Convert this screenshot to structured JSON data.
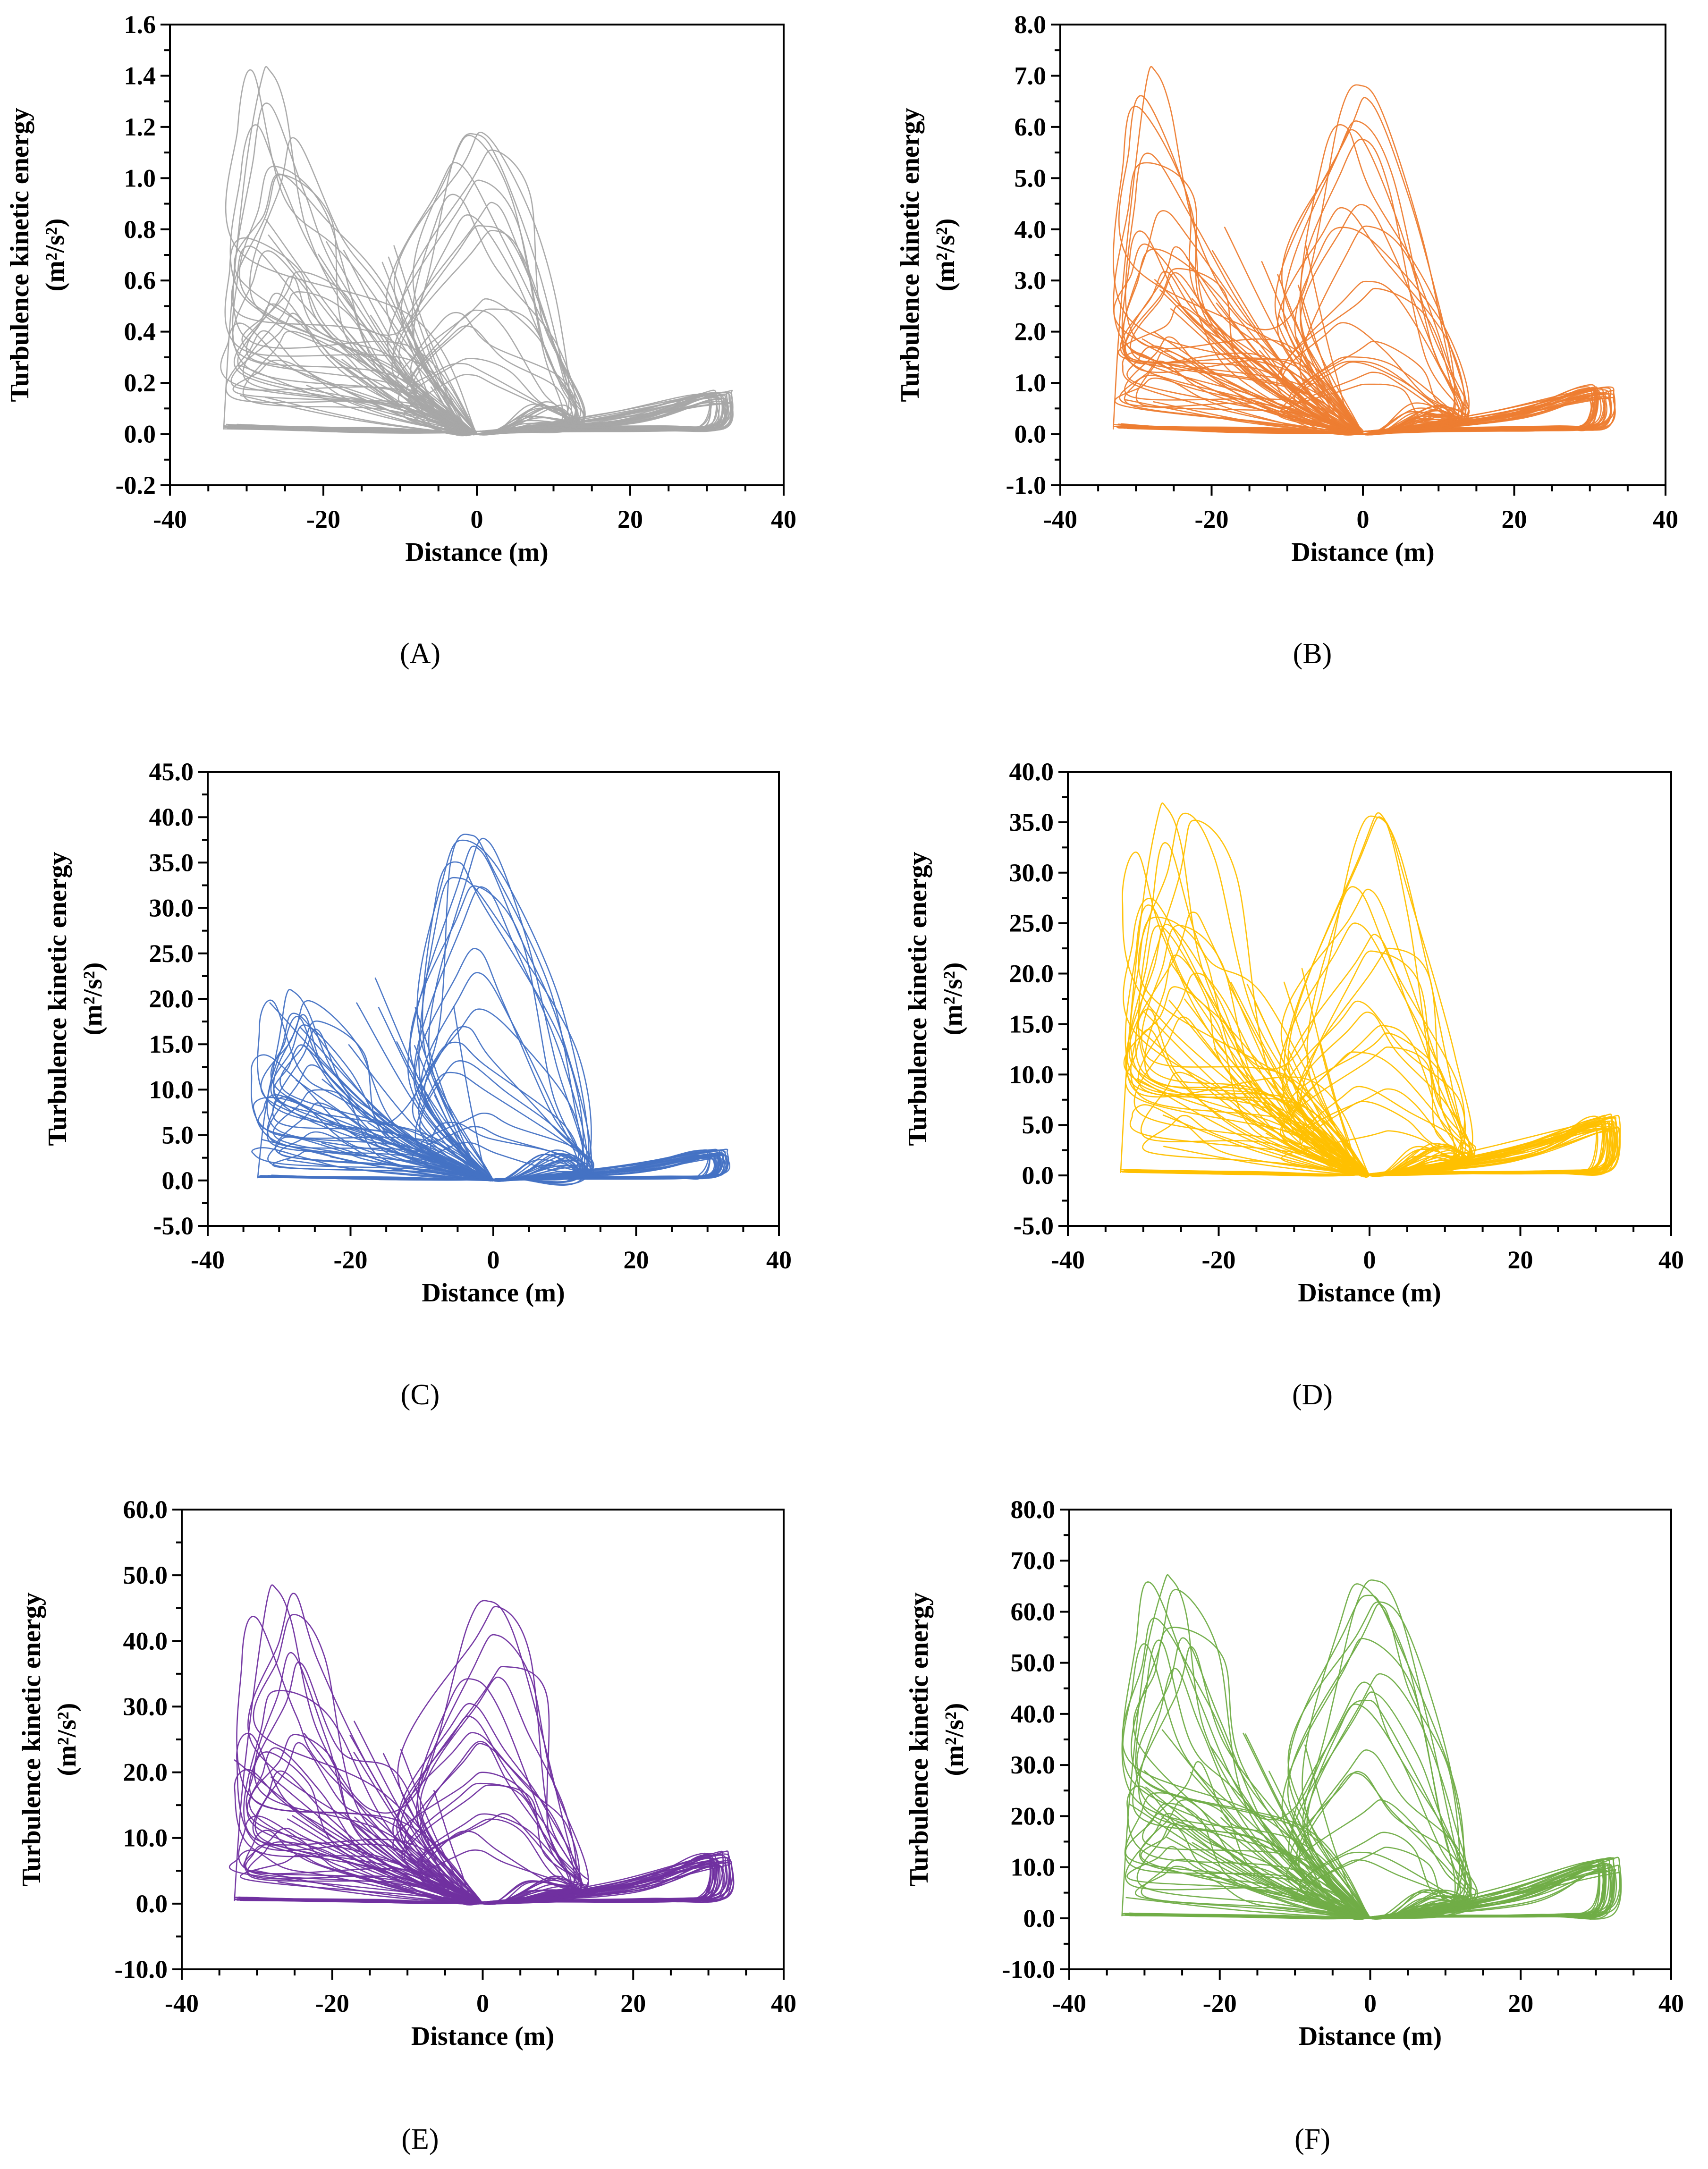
{
  "chart_data": [
    {
      "type": "line",
      "panel_label": "(A)",
      "xlabel": "Distance (m)",
      "ylabel_line1": "Turbulence kinetic energy",
      "ylabel_line2": "(m²/s²)",
      "xlim": [
        -40,
        40
      ],
      "ylim": [
        -0.2,
        1.6
      ],
      "x_ticks": [
        -40,
        -20,
        0,
        20,
        40
      ],
      "x_tick_labels": [
        "-40",
        "-20",
        "0",
        "20",
        "40"
      ],
      "y_ticks": [
        -0.2,
        0,
        0.2,
        0.4,
        0.6,
        0.8,
        1.0,
        1.2,
        1.4,
        1.6
      ],
      "y_tick_labels": [
        "-0.2",
        "0.0",
        "0.2",
        "0.4",
        "0.6",
        "0.8",
        "1.0",
        "1.2",
        "1.4",
        "1.6"
      ],
      "color": "#a6a6a6",
      "grid": false,
      "legend": "none",
      "left_peak": [
        -27,
        1.42
      ],
      "right_peak": [
        0,
        1.17
      ],
      "loop_top": 0.17,
      "loop_bottom": 0.02
    },
    {
      "type": "line",
      "panel_label": "(B)",
      "xlabel": "Distance (m)",
      "ylabel_line1": "Turbulence kinetic energy",
      "ylabel_line2": "(m²/s²)",
      "xlim": [
        -40,
        40
      ],
      "ylim": [
        -1.0,
        8.0
      ],
      "x_ticks": [
        -40,
        -20,
        0,
        20,
        40
      ],
      "x_tick_labels": [
        "-40",
        "-20",
        "0",
        "20",
        "40"
      ],
      "y_ticks": [
        -1,
        0,
        1,
        2,
        3,
        4,
        5,
        6,
        7,
        8
      ],
      "y_tick_labels": [
        "-1.0",
        "0.0",
        "1.0",
        "2.0",
        "3.0",
        "4.0",
        "5.0",
        "6.0",
        "7.0",
        "8.0"
      ],
      "color": "#ed7d31",
      "grid": false,
      "legend": "none",
      "left_peak": [
        -27.5,
        7.1
      ],
      "right_peak": [
        0,
        6.8
      ],
      "loop_top": 1.0,
      "loop_bottom": 0.1
    },
    {
      "type": "line",
      "panel_label": "(C)",
      "xlabel": "Distance (m)",
      "ylabel_line1": "Turbulence kinetic energy",
      "ylabel_line2": "(m²/s²)",
      "xlim": [
        -40,
        40
      ],
      "ylim": [
        -5.0,
        45.0
      ],
      "x_ticks": [
        -40,
        -20,
        0,
        20,
        40
      ],
      "x_tick_labels": [
        "-40",
        "-20",
        "0",
        "20",
        "40"
      ],
      "y_ticks": [
        -5,
        0,
        5,
        10,
        15,
        20,
        25,
        30,
        35,
        40,
        45
      ],
      "y_tick_labels": [
        "-5.0",
        "0.0",
        "5.0",
        "10.0",
        "15.0",
        "20.0",
        "25.0",
        "30.0",
        "35.0",
        "40.0",
        "45.0"
      ],
      "color": "#4472c4",
      "grid": false,
      "legend": "none",
      "left_peak": [
        -28,
        20.8
      ],
      "right_peak": [
        -3,
        38.0
      ],
      "loop_top": 3.5,
      "loop_bottom": 0.3
    },
    {
      "type": "line",
      "panel_label": "(D)",
      "xlabel": "Distance (m)",
      "ylabel_line1": "Turbulence kinetic energy",
      "ylabel_line2": "(m²/s²)",
      "xlim": [
        -40,
        40
      ],
      "ylim": [
        -5.0,
        40.0
      ],
      "x_ticks": [
        -40,
        -20,
        0,
        20,
        40
      ],
      "x_tick_labels": [
        "-40",
        "-20",
        "0",
        "20",
        "40"
      ],
      "y_ticks": [
        -5,
        0,
        5,
        10,
        15,
        20,
        25,
        30,
        35,
        40
      ],
      "y_tick_labels": [
        "-5.0",
        "0.0",
        "5.0",
        "10.0",
        "15.0",
        "20.0",
        "25.0",
        "30.0",
        "35.0",
        "40.0"
      ],
      "color": "#ffc000",
      "grid": false,
      "legend": "none",
      "left_peak": [
        -27,
        36.5
      ],
      "right_peak": [
        1,
        35.5
      ],
      "loop_top": 6.2,
      "loop_bottom": 0.3
    },
    {
      "type": "line",
      "panel_label": "(E)",
      "xlabel": "Distance (m)",
      "ylabel_line1": "Turbulence kinetic energy",
      "ylabel_line2": "(m²/s²)",
      "xlim": [
        -40,
        40
      ],
      "ylim": [
        -10.0,
        60.0
      ],
      "x_ticks": [
        -40,
        -20,
        0,
        20,
        40
      ],
      "x_tick_labels": [
        "-40",
        "-20",
        "0",
        "20",
        "40"
      ],
      "y_ticks": [
        -10,
        0,
        10,
        20,
        30,
        40,
        50,
        60
      ],
      "y_tick_labels": [
        "-10.0",
        "0.0",
        "10.0",
        "20.0",
        "30.0",
        "40.0",
        "50.0",
        "60.0"
      ],
      "color": "#7030a0",
      "grid": false,
      "legend": "none",
      "left_peak": [
        -27.5,
        48.0
      ],
      "right_peak": [
        1,
        46.0
      ],
      "loop_top": 8.0,
      "loop_bottom": 0.5
    },
    {
      "type": "line",
      "panel_label": "(F)",
      "xlabel": "Distance (m)",
      "ylabel_line1": "Turbulence kinetic energy",
      "ylabel_line2": "(m²/s²)",
      "xlim": [
        -40,
        40
      ],
      "ylim": [
        -10.0,
        80.0
      ],
      "x_ticks": [
        -40,
        -20,
        0,
        20,
        40
      ],
      "x_tick_labels": [
        "-40",
        "-20",
        "0",
        "20",
        "40"
      ],
      "y_ticks": [
        -10,
        0,
        10,
        20,
        30,
        40,
        50,
        60,
        70,
        80
      ],
      "y_tick_labels": [
        "-10.0",
        "0.0",
        "10.0",
        "20.0",
        "30.0",
        "40.0",
        "50.0",
        "60.0",
        "70.0",
        "80.0"
      ],
      "color": "#70ad47",
      "grid": false,
      "legend": "none",
      "left_peak": [
        -26.5,
        66.5
      ],
      "right_peak": [
        1,
        66.0
      ],
      "loop_top": 12.0,
      "loop_bottom": 0.5
    }
  ]
}
